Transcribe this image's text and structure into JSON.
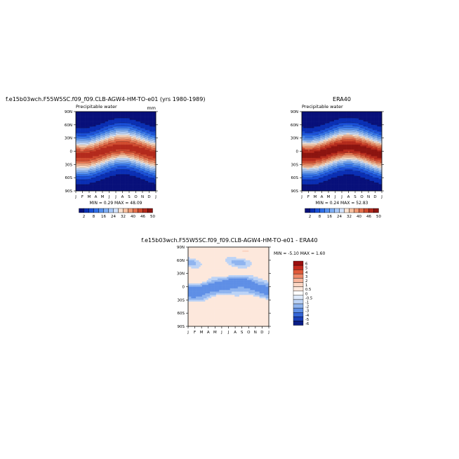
{
  "chart_data": [
    {
      "type": "heatmap",
      "title": "f.e15b03wch.F55W5SC.f09_f09.CLB-AGW4-HM-TO-e01 (yrs 1980-1989)",
      "variable_label": "Precipitable water",
      "units": "mm",
      "x": [
        "J",
        "F",
        "M",
        "A",
        "M",
        "J",
        "J",
        "A",
        "S",
        "O",
        "N",
        "D",
        "J"
      ],
      "y": [
        "90N",
        "60N",
        "30N",
        "0",
        "30S",
        "60S",
        "90S"
      ],
      "stats": "MIN =    0.29  MAX =   48.09",
      "min": 0.29,
      "max": 48.09,
      "colorbar_labels": [
        "2",
        "8",
        "16",
        "24",
        "32",
        "40",
        "46",
        "50"
      ]
    },
    {
      "type": "heatmap",
      "title": "ERA40",
      "variable_label": "Precipitable water",
      "x": [
        "J",
        "F",
        "M",
        "A",
        "M",
        "J",
        "J",
        "A",
        "S",
        "O",
        "N",
        "D",
        "J"
      ],
      "y": [
        "90N",
        "60N",
        "30N",
        "0",
        "30S",
        "60S",
        "90S"
      ],
      "stats": "MIN =    0.24  MAX =   52.83",
      "min": 0.24,
      "max": 52.83,
      "colorbar_labels": [
        "2",
        "8",
        "16",
        "24",
        "32",
        "40",
        "46",
        "50"
      ]
    },
    {
      "type": "heatmap",
      "title": "f.e15b03wch.F55W5SC.f09_f09.CLB-AGW4-HM-TO-e01 - ERA40",
      "x": [
        "J",
        "F",
        "M",
        "A",
        "M",
        "J",
        "J",
        "A",
        "S",
        "O",
        "N",
        "D",
        "J"
      ],
      "y": [
        "90N",
        "60N",
        "30N",
        "0",
        "30S",
        "60S",
        "90S"
      ],
      "stats": "MIN =  -5.10  MAX =    1.60",
      "min": -5.1,
      "max": 1.6,
      "colorbar_labels": [
        "6",
        "5",
        "4",
        "3",
        "2",
        "1",
        "0.5",
        "0",
        "-0.5",
        "-1",
        "-2",
        "-3",
        "-4",
        "-5",
        "-6"
      ]
    }
  ],
  "colors": {
    "absolute_scale": [
      "#08107a",
      "#0a2fb4",
      "#1a4fd6",
      "#2f6ee8",
      "#5590f0",
      "#7eaef5",
      "#a8c8f8",
      "#d2e2fb",
      "#fbe3d2",
      "#f7c1a1",
      "#f09a74",
      "#e4704d",
      "#cf4b2f",
      "#b32a1c",
      "#8c1410"
    ],
    "difference_scale": [
      "#9c0e0e",
      "#c42a1e",
      "#e05a3a",
      "#ef8a6a",
      "#f7b49a",
      "#fbd6c4",
      "#fde8dc",
      "#ffffff",
      "#dde9fb",
      "#bcd3f6",
      "#8fb4ef",
      "#5f8fe6",
      "#3566d6",
      "#1a3fb8",
      "#0a1d86"
    ]
  }
}
